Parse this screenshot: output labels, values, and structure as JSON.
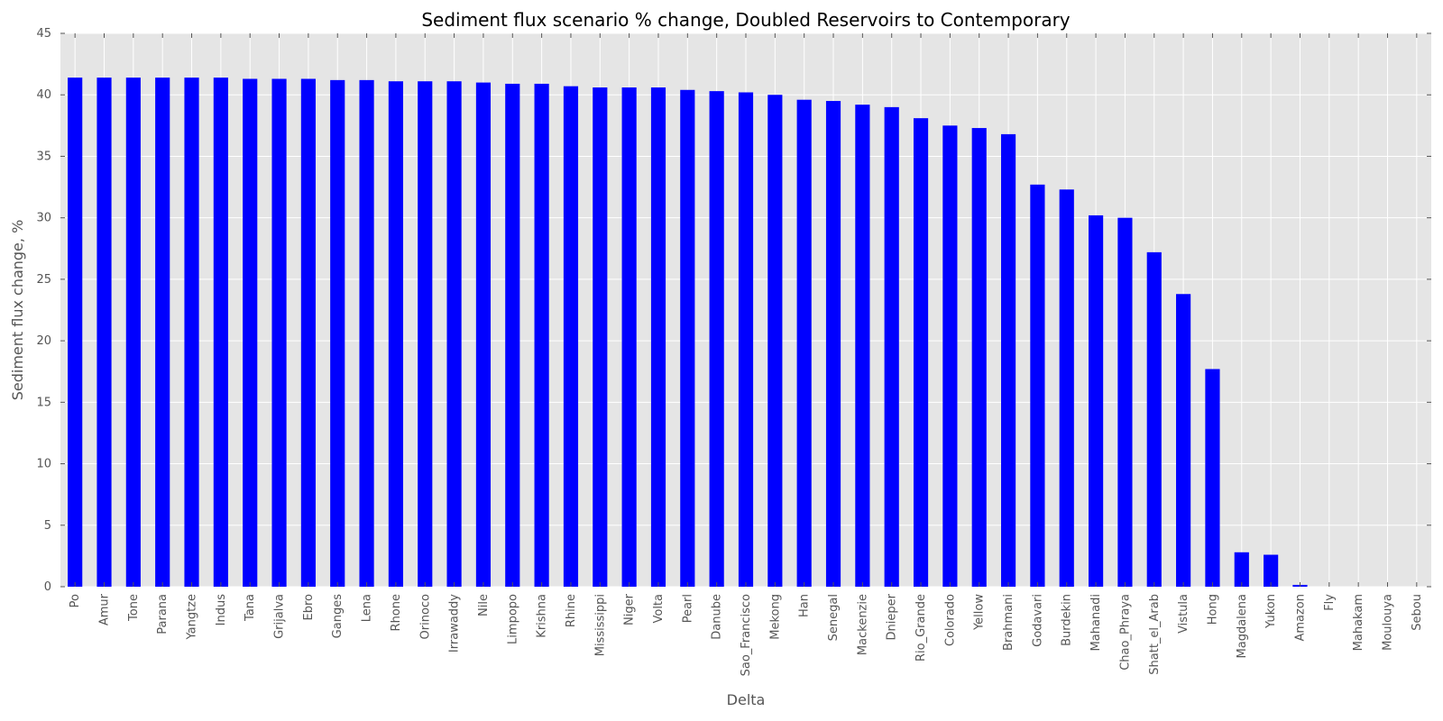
{
  "chart_data": {
    "type": "bar",
    "title": "Sediment flux scenario % change, Doubled Reservoirs to Contemporary",
    "xlabel": "Delta",
    "ylabel": "Sediment flux change, %",
    "ylim": [
      0,
      45
    ],
    "yticks": [
      0,
      5,
      10,
      15,
      20,
      25,
      30,
      35,
      40,
      45
    ],
    "grid": true,
    "categories": [
      "Po",
      "Amur",
      "Tone",
      "Parana",
      "Yangtze",
      "Indus",
      "Tana",
      "Grijalva",
      "Ebro",
      "Ganges",
      "Lena",
      "Rhone",
      "Orinoco",
      "Irrawaddy",
      "Nile",
      "Limpopo",
      "Krishna",
      "Rhine",
      "Mississippi",
      "Niger",
      "Volta",
      "Pearl",
      "Danube",
      "Sao_Francisco",
      "Mekong",
      "Han",
      "Senegal",
      "Mackenzie",
      "Dnieper",
      "Rio_Grande",
      "Colorado",
      "Yellow",
      "Brahmani",
      "Godavari",
      "Burdekin",
      "Mahanadi",
      "Chao_Phraya",
      "Shatt_el_Arab",
      "Vistula",
      "Hong",
      "Magdalena",
      "Yukon",
      "Amazon",
      "Fly",
      "Mahakam",
      "Moulouya",
      "Sebou"
    ],
    "values": [
      41.4,
      41.4,
      41.4,
      41.4,
      41.4,
      41.4,
      41.3,
      41.3,
      41.3,
      41.2,
      41.2,
      41.1,
      41.1,
      41.1,
      41.0,
      40.9,
      40.9,
      40.7,
      40.6,
      40.6,
      40.6,
      40.4,
      40.3,
      40.2,
      40.0,
      39.6,
      39.5,
      39.2,
      39.0,
      38.1,
      37.5,
      37.3,
      36.8,
      32.7,
      32.3,
      30.2,
      30.0,
      27.2,
      23.8,
      17.7,
      2.8,
      2.6,
      0.15,
      0,
      0,
      0,
      0
    ],
    "bar_color": "#0000ff",
    "background_color": "#e5e5e5",
    "grid_color": "#ffffff"
  }
}
